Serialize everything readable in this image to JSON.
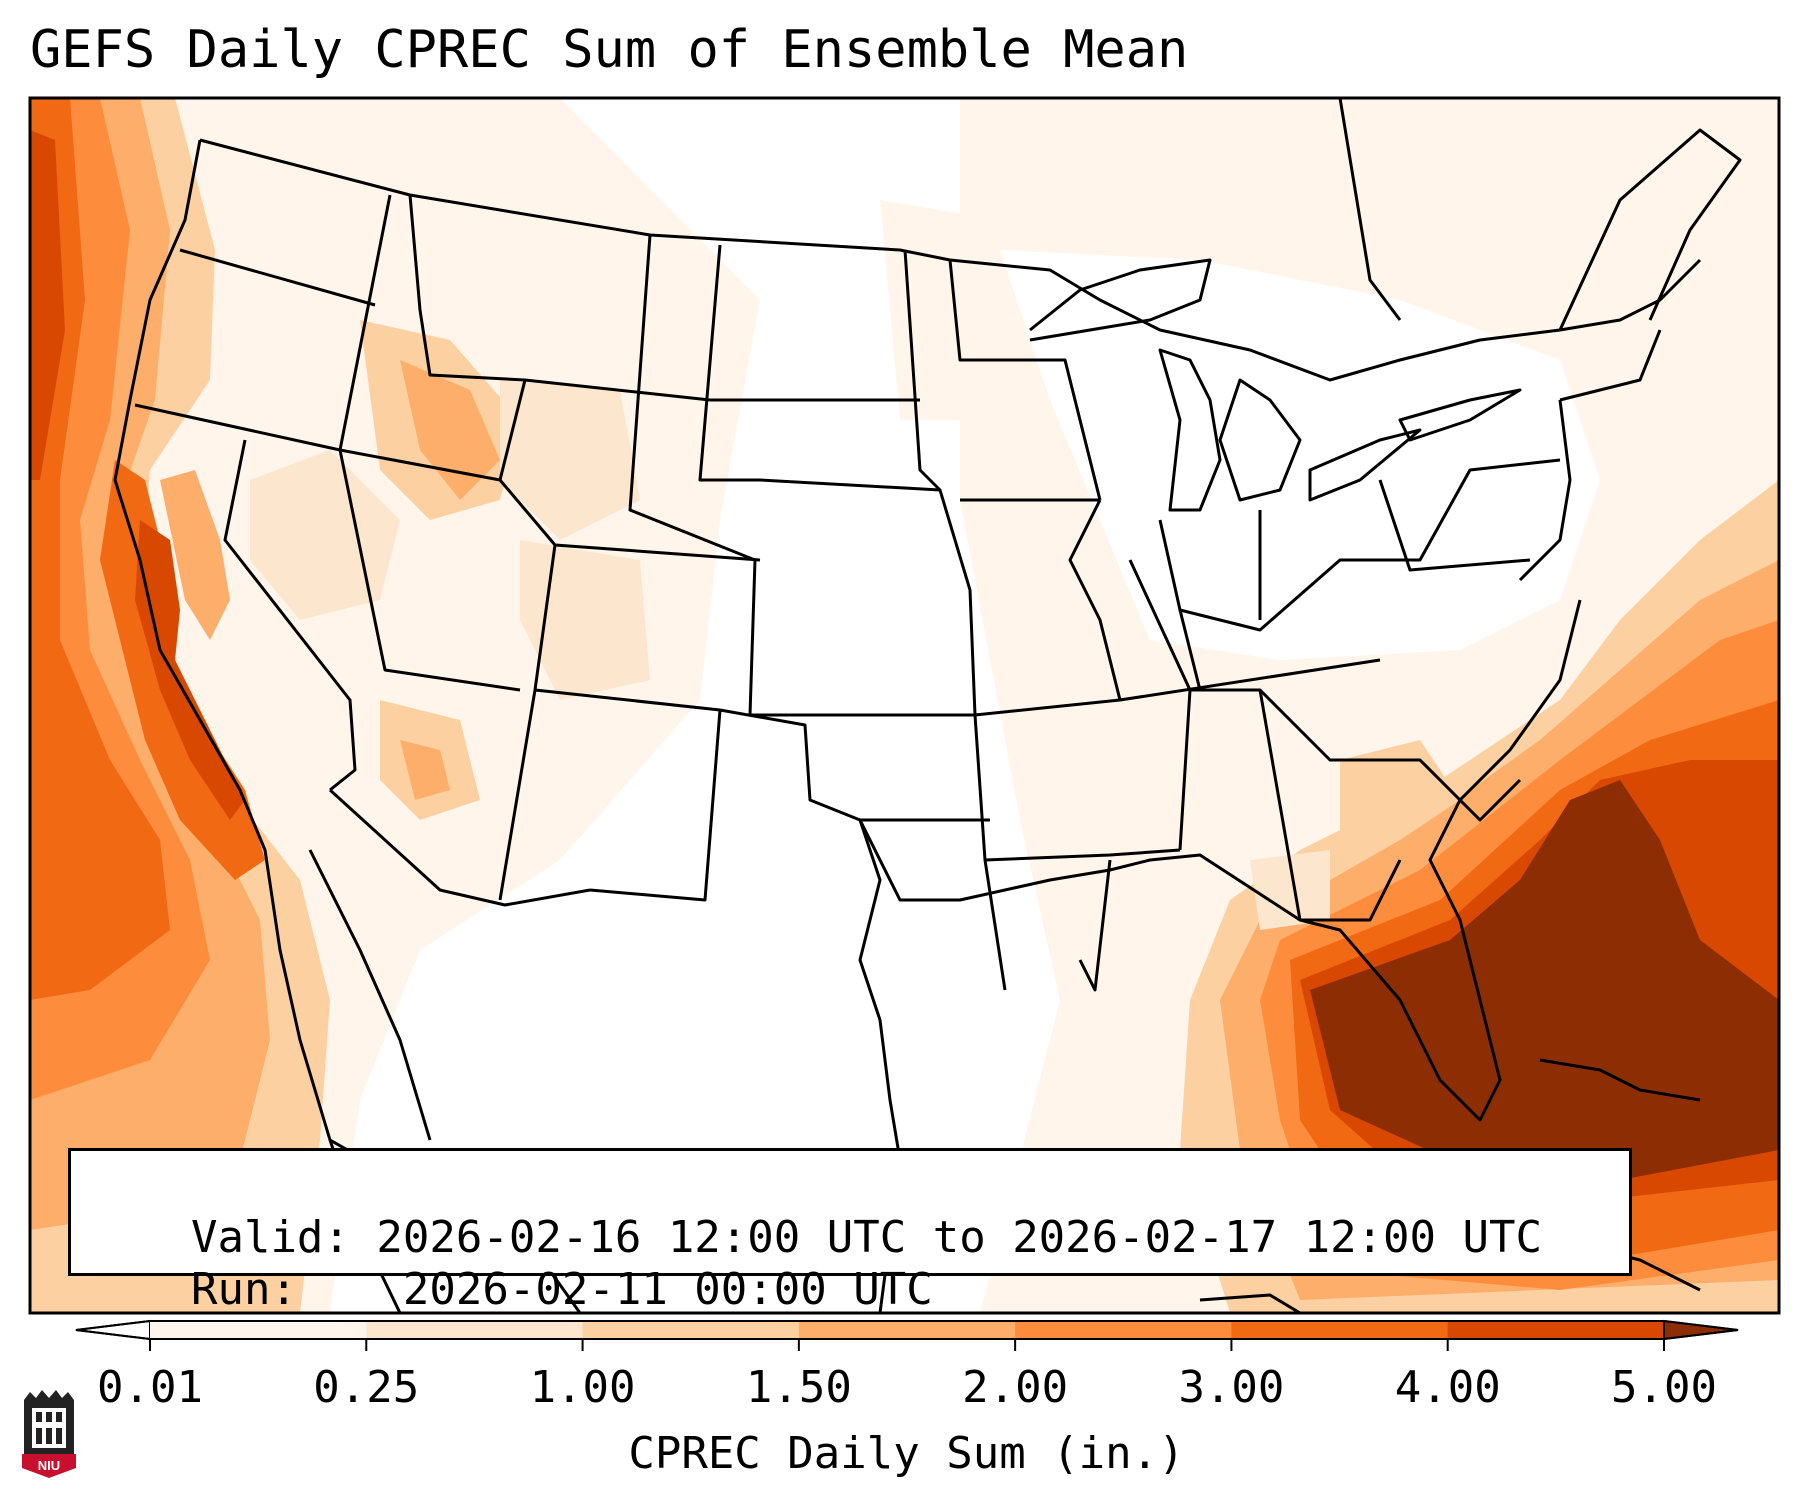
{
  "title": "GEFS Daily CPREC Sum of Ensemble Mean",
  "info": {
    "valid_label": "Valid:",
    "valid_value": "2026-02-16 12:00 UTC to 2026-02-17 12:00 UTC",
    "run_label": "Run:",
    "run_value": "2026-02-11 00:00 UTC"
  },
  "colorbar": {
    "title": "CPREC Daily Sum (in.)",
    "ticks": [
      "0.01",
      "0.25",
      "1.00",
      "1.50",
      "2.00",
      "3.00",
      "4.00",
      "5.00"
    ],
    "colors": [
      "#fff5eb",
      "#fde6ce",
      "#fdd0a2",
      "#fdae6b",
      "#fd8d3c",
      "#f16913",
      "#d94801",
      "#8c2d04"
    ],
    "under_color": "#ffffff",
    "over_color": "#8c2d04",
    "extend": "both"
  },
  "logo": {
    "text": "NIU",
    "color": "#c8102e"
  },
  "map": {
    "projection": "Lambert Conformal",
    "region": "Contiguous United States",
    "field": "CPREC daily sum",
    "borders": "state and country boundaries"
  }
}
